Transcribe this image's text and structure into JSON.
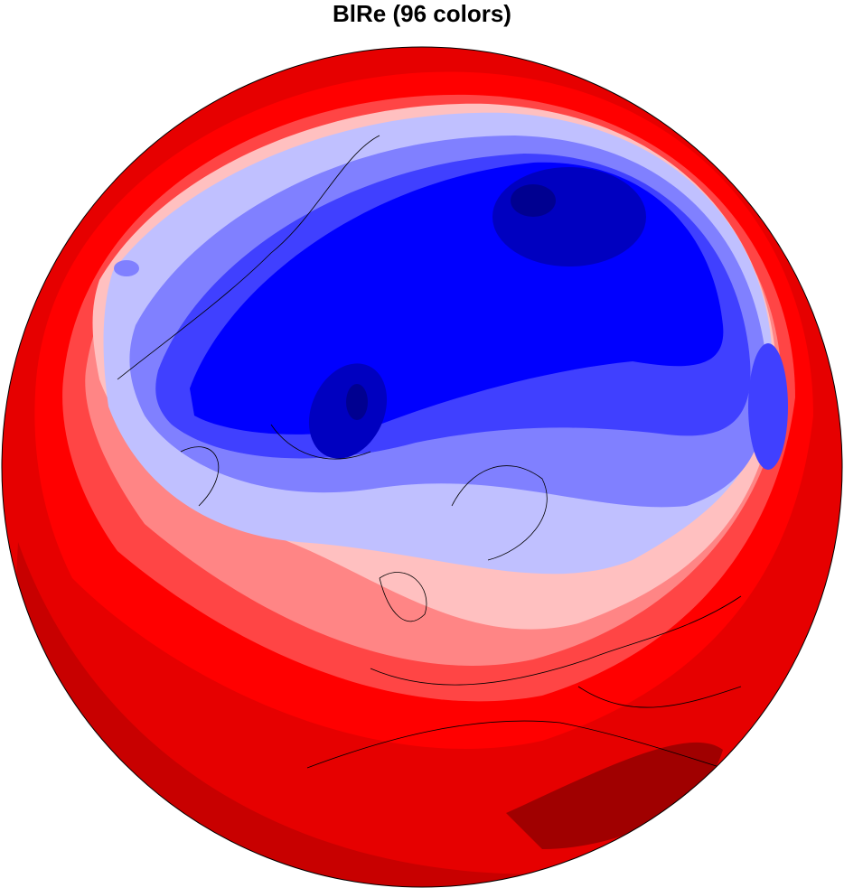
{
  "title": "BlRe (96 colors)"
}
